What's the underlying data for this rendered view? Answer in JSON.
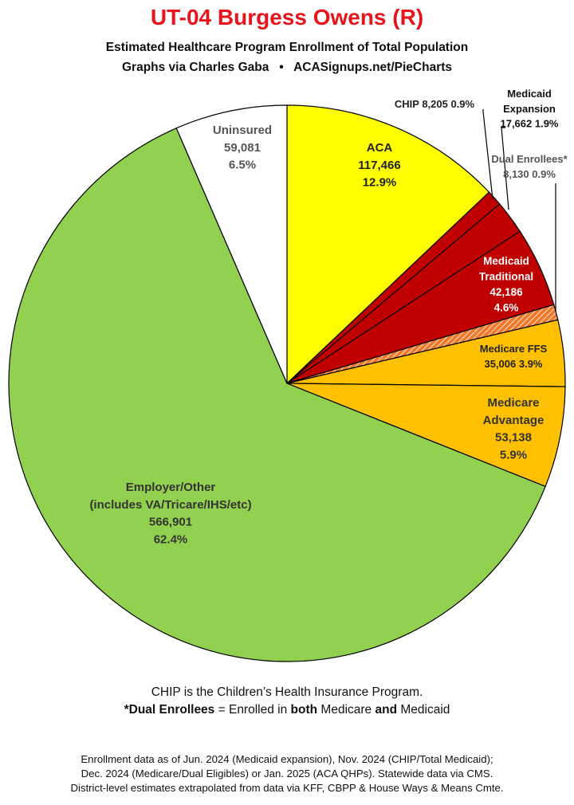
{
  "header": {
    "title": "UT-04 Burgess Owens (R)",
    "subtitle": "Estimated Healthcare Program Enrollment of Total Population",
    "credit_left": "Graphs via Charles Gaba",
    "credit_sep": "•",
    "credit_right": "ACASignups.net/PieCharts"
  },
  "chart_data": {
    "type": "pie",
    "start": "12 o'clock, clockwise",
    "slices": [
      {
        "name": "ACA",
        "value": 117466,
        "percent": "12.9%",
        "color": "#ffff00",
        "label_lines": [
          "ACA",
          "117,466",
          "12.9%"
        ]
      },
      {
        "name": "CHIP",
        "value": 8205,
        "percent": "0.9%",
        "color": "#c00000",
        "label_lines": [
          "CHIP 8,205 0.9%"
        ]
      },
      {
        "name": "Medicaid Expansion",
        "value": 17662,
        "percent": "1.9%",
        "color": "#c00000",
        "label_lines": [
          "Medicaid",
          "Expansion",
          "17,662 1.9%"
        ]
      },
      {
        "name": "Medicaid Traditional",
        "value": 42186,
        "percent": "4.6%",
        "color": "#c00000",
        "label_lines": [
          "Medicaid",
          "Traditional",
          "42,186",
          "4.6%"
        ]
      },
      {
        "name": "Dual Enrollees*",
        "value": 8130,
        "percent": "0.9%",
        "color": "#f07828",
        "pattern": "hatched",
        "label_lines": [
          "Dual Enrollees*",
          "8,130 0.9%"
        ]
      },
      {
        "name": "Medicare FFS",
        "value": 35006,
        "percent": "3.9%",
        "color": "#ffc000",
        "label_lines": [
          "Medicare FFS",
          "35,006 3.9%"
        ]
      },
      {
        "name": "Medicare Advantage",
        "value": 53138,
        "percent": "5.9%",
        "color": "#ffc000",
        "label_lines": [
          "Medicare",
          "Advantage",
          "53,138",
          "5.9%"
        ]
      },
      {
        "name": "Employer/Other",
        "value": 566901,
        "percent": "62.4%",
        "color": "#92d050",
        "label_lines": [
          "Employer/Other",
          "(includes VA/Tricare/IHS/etc)",
          "566,901",
          "62.4%"
        ]
      },
      {
        "name": "Uninsured",
        "value": 59081,
        "percent": "6.5%",
        "color": "#ffffff",
        "label_lines": [
          "Uninsured",
          "59,081",
          "6.5%"
        ]
      }
    ]
  },
  "notes": {
    "chip_note": "CHIP is the Children’s Health Insurance Program.",
    "dual_a": "*Dual Enrollees",
    "dual_b": " = Enrolled in ",
    "dual_c": "both",
    "dual_d": " Medicare ",
    "dual_e": "and",
    "dual_f": " Medicaid"
  },
  "footer": {
    "line1": "Enrollment data as of Jun. 2024 (Medicaid expansion), Nov. 2024 (CHIP/Total Medicaid);",
    "line2": "Dec. 2024 (Medicare/Dual Eligibles) or Jan. 2025 (ACA QHPs). Statewide data via CMS.",
    "line3": "District-level estimates extrapolated from data via KFF, CBPP & House Ways & Means Cmte."
  }
}
